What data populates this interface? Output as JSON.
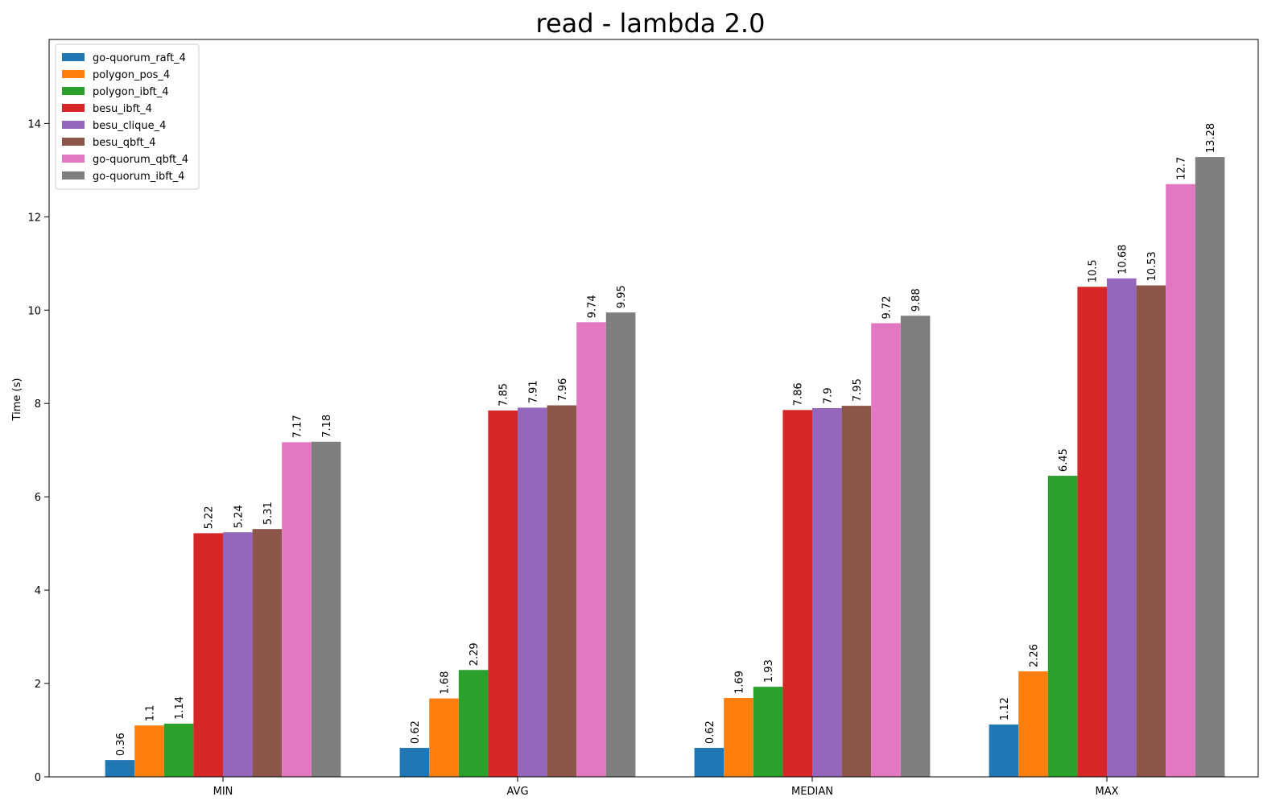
{
  "chart_data": {
    "type": "bar",
    "title": "read - lambda 2.0",
    "xlabel": "",
    "ylabel": "Time (s)",
    "categories": [
      "MIN",
      "AVG",
      "MEDIAN",
      "MAX"
    ],
    "ylim": [
      0,
      15.8
    ],
    "yticks": [
      0,
      2,
      4,
      6,
      8,
      10,
      12,
      14
    ],
    "grid": false,
    "legend_position": "top-left",
    "series": [
      {
        "name": "go-quorum_raft_4",
        "color": "#1f77b4",
        "values": [
          0.36,
          0.62,
          0.62,
          1.12
        ]
      },
      {
        "name": "polygon_pos_4",
        "color": "#ff7f0e",
        "values": [
          1.1,
          1.68,
          1.69,
          2.26
        ]
      },
      {
        "name": "polygon_ibft_4",
        "color": "#2ca02c",
        "values": [
          1.14,
          2.29,
          1.93,
          6.45
        ]
      },
      {
        "name": "besu_ibft_4",
        "color": "#d62728",
        "values": [
          5.22,
          7.85,
          7.86,
          10.5
        ]
      },
      {
        "name": "besu_clique_4",
        "color": "#9467bd",
        "values": [
          5.24,
          7.91,
          7.9,
          10.68
        ]
      },
      {
        "name": "besu_qbft_4",
        "color": "#8c564b",
        "values": [
          5.31,
          7.96,
          7.95,
          10.53
        ]
      },
      {
        "name": "go-quorum_qbft_4",
        "color": "#e377c2",
        "values": [
          7.17,
          9.74,
          9.72,
          12.7
        ]
      },
      {
        "name": "go-quorum_ibft_4",
        "color": "#7f7f7f",
        "values": [
          7.18,
          9.95,
          9.88,
          13.28
        ]
      }
    ]
  }
}
